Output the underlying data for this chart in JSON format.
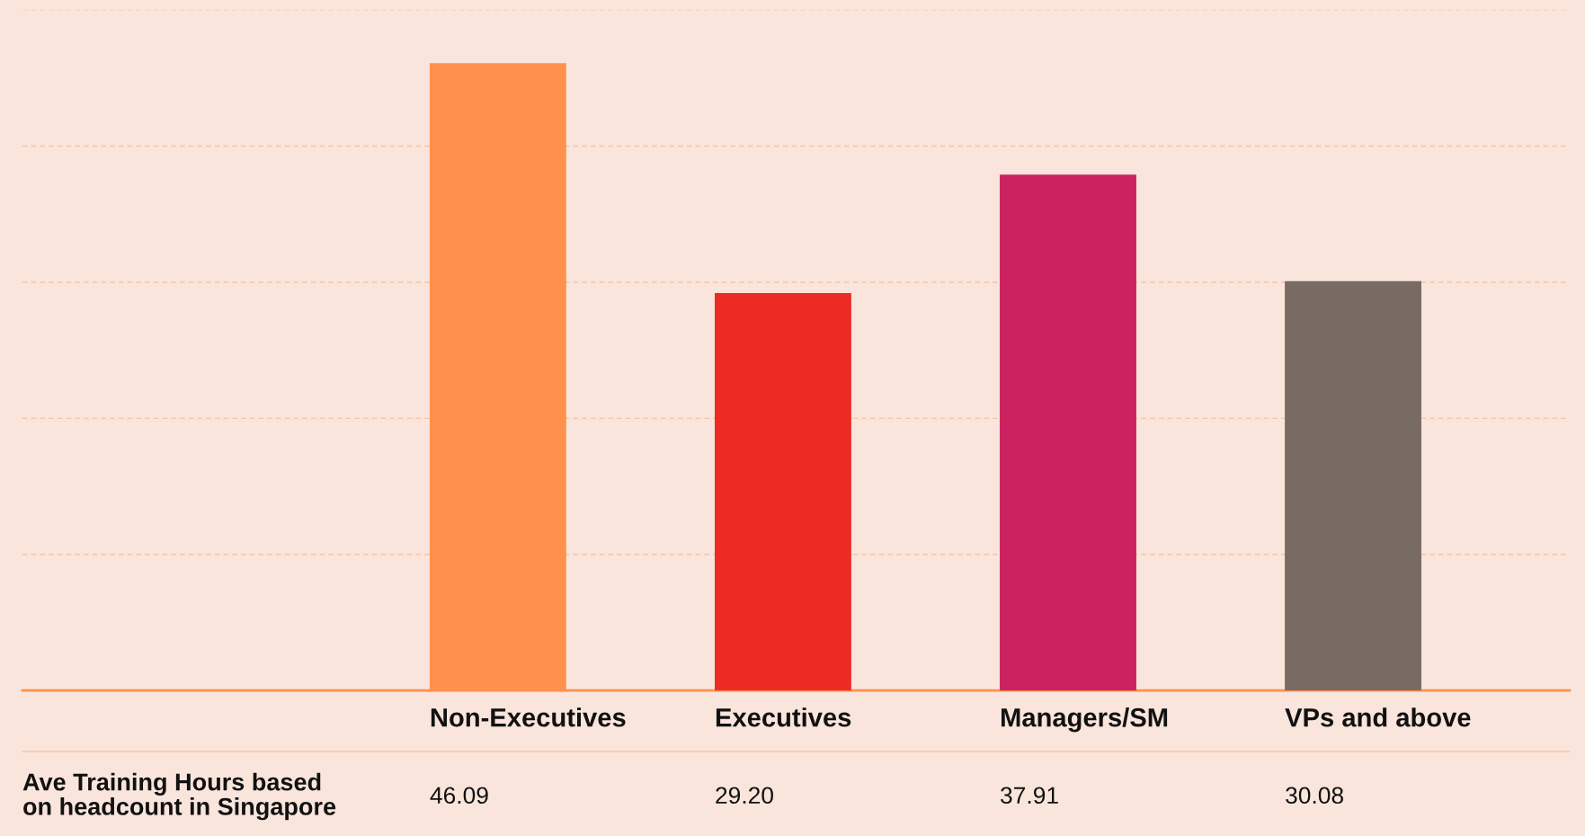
{
  "chart_data": {
    "type": "bar",
    "categories": [
      "Non-Executives",
      "Executives",
      "Managers/SM",
      "VPs and above"
    ],
    "values": [
      46.09,
      29.2,
      37.91,
      30.08
    ],
    "value_labels": [
      "46.09",
      "29.20",
      "37.91",
      "30.08"
    ],
    "colors": [
      "#ff914d",
      "#ec2c24",
      "#cb2260",
      "#786b63"
    ],
    "ylim": [
      0,
      50
    ],
    "yticks": [
      {
        "value": 0,
        "label": null
      },
      {
        "value": 10,
        "label": null
      },
      {
        "value": 20,
        "label": null
      },
      {
        "value": 30,
        "label": null
      },
      {
        "value": 40,
        "label": null
      },
      {
        "value": 50,
        "label": null
      }
    ],
    "grid": "y",
    "annotations": [
      "Ave Training Hours based\non headcount in Singapore"
    ]
  }
}
